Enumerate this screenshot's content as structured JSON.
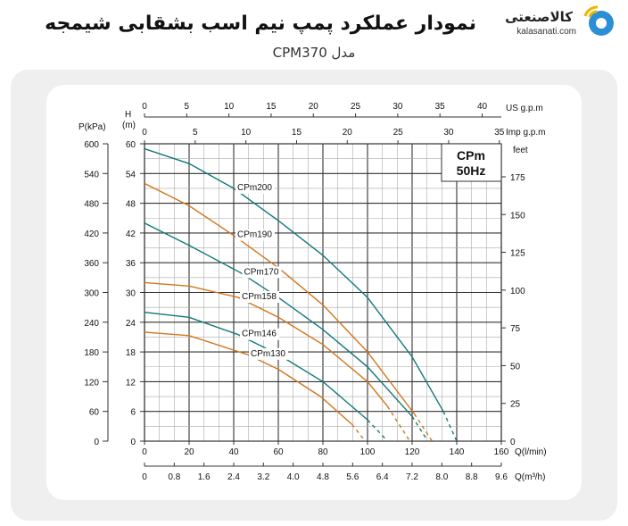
{
  "header": {
    "title": "نمودار عملکرد پمپ نیم اسب بشقابی شیمجه",
    "subtitle": "مدل CPM370",
    "logo_text": "کالاصنعتی",
    "logo_url": "kalasanati.com"
  },
  "colors": {
    "teal": "#13787a",
    "orange": "#d2761c",
    "grid": "#555555",
    "frame": "#efefef"
  },
  "chart_data": {
    "type": "line",
    "legend_box": [
      "CPm",
      "50Hz"
    ],
    "x_axis": {
      "label": "Q(l/min)",
      "range": [
        0,
        160
      ],
      "ticks": [
        0,
        20,
        40,
        60,
        80,
        100,
        120,
        140,
        160
      ]
    },
    "x_axis_m3h": {
      "label": "Q(m³/h)",
      "ticks": [
        "0",
        "0.8",
        "1.6",
        "2.4",
        "3.2",
        "4.0",
        "4.8",
        "5.6",
        "6.4",
        "7.2",
        "8.0",
        "8.8",
        "9.6"
      ]
    },
    "x_axis_us": {
      "label": "US  g.p.m",
      "ticks": [
        0,
        5,
        10,
        15,
        20,
        25,
        30,
        35,
        40
      ]
    },
    "x_axis_imp": {
      "label": "Imp  g.p.m",
      "ticks": [
        0,
        5,
        10,
        15,
        20,
        25,
        30,
        35
      ]
    },
    "y_axis_h": {
      "label_top": "H",
      "label_bottom": "(m)",
      "range": [
        0,
        60
      ],
      "ticks": [
        0,
        6,
        12,
        18,
        24,
        30,
        36,
        42,
        48,
        54,
        60
      ]
    },
    "y_axis_p": {
      "label": "P(kPa)",
      "ticks": [
        0,
        60,
        120,
        180,
        240,
        300,
        360,
        420,
        480,
        540,
        600
      ]
    },
    "y_axis_feet": {
      "label": "feet",
      "ticks": [
        0,
        25,
        50,
        75,
        100,
        125,
        150,
        175
      ]
    },
    "grid": true,
    "series": [
      {
        "name": "CPm200",
        "color": "teal",
        "points": [
          [
            0,
            59
          ],
          [
            20,
            56
          ],
          [
            40,
            51
          ],
          [
            60,
            44.5
          ],
          [
            80,
            37.5
          ],
          [
            100,
            29
          ],
          [
            120,
            17
          ],
          [
            134,
            6
          ],
          [
            140,
            0
          ]
        ]
      },
      {
        "name": "CPm190",
        "color": "orange",
        "points": [
          [
            0,
            52
          ],
          [
            20,
            47.5
          ],
          [
            40,
            41.5
          ],
          [
            60,
            35
          ],
          [
            80,
            27.5
          ],
          [
            100,
            18
          ],
          [
            121,
            5.5
          ],
          [
            129,
            0
          ]
        ]
      },
      {
        "name": "CPm170",
        "color": "teal",
        "points": [
          [
            0,
            44
          ],
          [
            20,
            39.5
          ],
          [
            43,
            34
          ],
          [
            60,
            29
          ],
          [
            80,
            22.5
          ],
          [
            100,
            15
          ],
          [
            120,
            5
          ],
          [
            127,
            0
          ]
        ]
      },
      {
        "name": "CPm158",
        "color": "orange",
        "points": [
          [
            0,
            32
          ],
          [
            20,
            31.3
          ],
          [
            42,
            29
          ],
          [
            60,
            25
          ],
          [
            80,
            19.5
          ],
          [
            100,
            12
          ],
          [
            109,
            7
          ],
          [
            119,
            0
          ]
        ]
      },
      {
        "name": "CPm146",
        "color": "teal",
        "points": [
          [
            0,
            26
          ],
          [
            20,
            25
          ],
          [
            42,
            21.5
          ],
          [
            60,
            17.5
          ],
          [
            80,
            12
          ],
          [
            100,
            4.3
          ],
          [
            109,
            0
          ]
        ]
      },
      {
        "name": "CPm130",
        "color": "orange",
        "points": [
          [
            0,
            22
          ],
          [
            20,
            21.3
          ],
          [
            46,
            17.5
          ],
          [
            60,
            14.5
          ],
          [
            79,
            9
          ],
          [
            93,
            3.4
          ],
          [
            99,
            0
          ]
        ]
      }
    ]
  }
}
